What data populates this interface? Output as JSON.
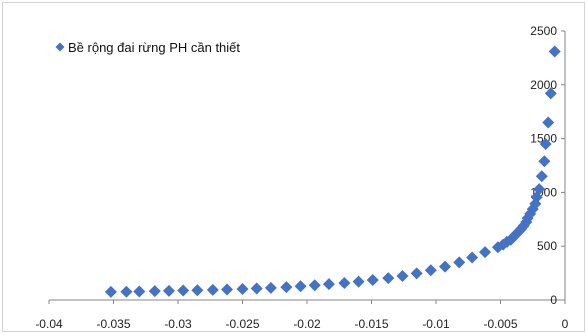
{
  "chart_data": {
    "type": "scatter",
    "title": "",
    "xlabel": "",
    "ylabel": "",
    "xlim": [
      -0.04,
      0
    ],
    "ylim": [
      0,
      2500
    ],
    "x_ticks": [
      -0.04,
      -0.035,
      -0.03,
      -0.025,
      -0.02,
      -0.015,
      -0.01,
      -0.005,
      0
    ],
    "x_tick_labels": [
      "-0.04",
      "-0.035",
      "-0.03",
      "-0.025",
      "-0.02",
      "-0.015",
      "-0.01",
      "-0.005",
      "0"
    ],
    "y_ticks": [
      0,
      500,
      1000,
      1500,
      2000,
      2500
    ],
    "y_tick_labels": [
      "0",
      "500",
      "1000",
      "1500",
      "2000",
      "2500"
    ],
    "grid": false,
    "legend_position": "top-left",
    "series": [
      {
        "name": "Bề rộng đai rừng PH cần thiết",
        "color": "#4472C4",
        "marker": "diamond",
        "x": [
          -0.0352,
          -0.034,
          -0.033,
          -0.0318,
          -0.0307,
          -0.0296,
          -0.0285,
          -0.0273,
          -0.0262,
          -0.025,
          -0.0239,
          -0.0228,
          -0.0216,
          -0.0205,
          -0.0194,
          -0.0183,
          -0.0171,
          -0.016,
          -0.0149,
          -0.0137,
          -0.0126,
          -0.0115,
          -0.0104,
          -0.0093,
          -0.0082,
          -0.0072,
          -0.0062,
          -0.0052,
          -0.0048,
          -0.0045,
          -0.0042,
          -0.004,
          -0.0038,
          -0.0036,
          -0.0034,
          -0.0032,
          -0.003,
          -0.0029,
          -0.0027,
          -0.0025,
          -0.0023,
          -0.0022,
          -0.002,
          -0.0018,
          -0.0016,
          -0.0015,
          -0.0013,
          -0.0011
        ],
        "y": [
          75,
          77,
          79,
          82,
          85,
          88,
          91,
          94,
          98,
          102,
          107,
          113,
          120,
          128,
          137,
          147,
          158,
          171,
          186,
          203,
          223,
          248,
          276,
          310,
          350,
          395,
          445,
          490,
          515,
          540,
          560,
          585,
          610,
          635,
          660,
          690,
          725,
          760,
          800,
          845,
          895,
          955,
          1030,
          1150,
          1290,
          1450,
          1650,
          1920
        ]
      }
    ],
    "extra_points": [
      {
        "x": -0.0008,
        "y": 2310
      }
    ]
  }
}
